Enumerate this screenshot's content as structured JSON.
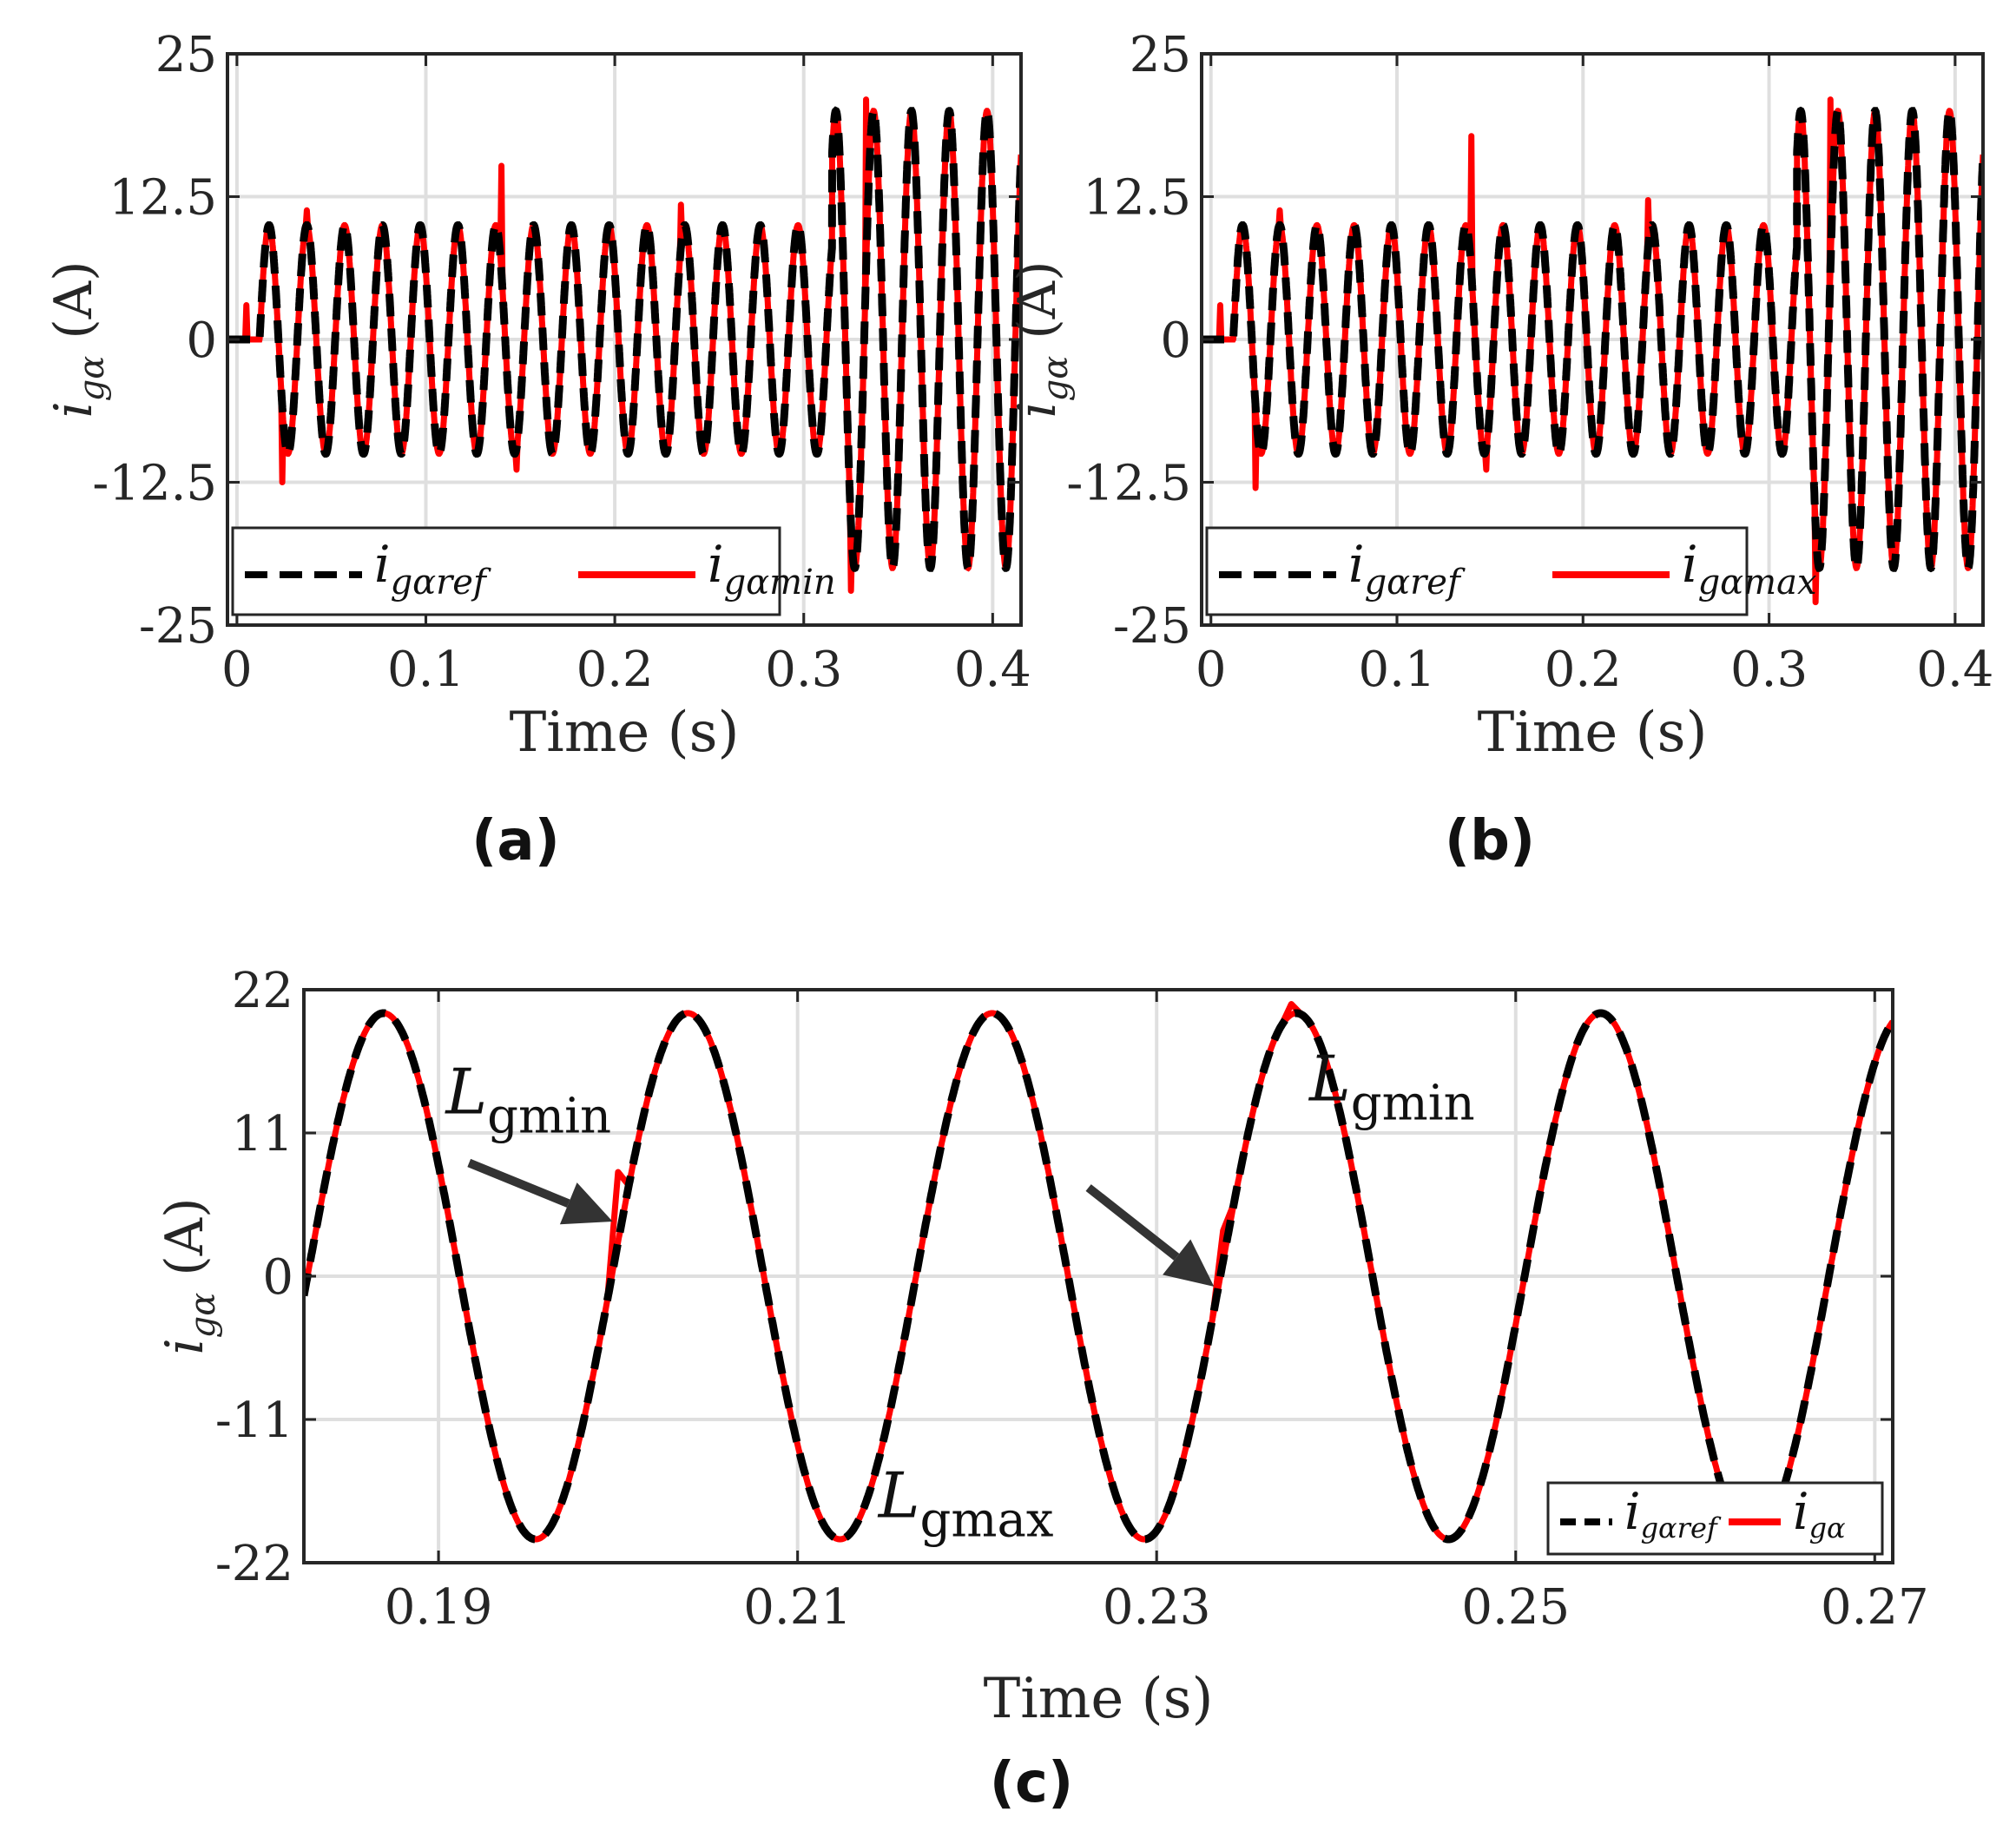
{
  "chart_data": [
    {
      "id": "a",
      "type": "line",
      "caption": "(a)",
      "xlabel": "Time (s)",
      "ylabel": "i_{gα} (A)",
      "ylabel_main": "i",
      "ylabel_sub": "gα",
      "ylabel_unit": " (A)",
      "xlim": [
        -0.005,
        0.415
      ],
      "ylim": [
        -25,
        25
      ],
      "xticks": [
        0,
        0.1,
        0.2,
        0.3,
        0.4
      ],
      "xtick_labels": [
        "0",
        "0.1",
        "0.2",
        "0.3",
        "0.4"
      ],
      "yticks": [
        -25,
        -12.5,
        0,
        12.5,
        25
      ],
      "ytick_labels": [
        "-25",
        "-12.5",
        "0",
        "12.5",
        "25"
      ],
      "grid": true,
      "legend_position": "bottom-left",
      "frequency_hz": 50,
      "series": [
        {
          "name": "i_{gαref}",
          "label_main": "i",
          "label_sub": "gαref",
          "color": "#000000",
          "style": "dashed",
          "segments": [
            {
              "t_start": 0.0,
              "t_end": 0.012,
              "amplitude": 0
            },
            {
              "t_start": 0.012,
              "t_end": 0.315,
              "amplitude": 10
            },
            {
              "t_start": 0.315,
              "t_end": 0.4,
              "amplitude": 20
            }
          ]
        },
        {
          "name": "i_{gαmin}",
          "label_main": "i",
          "label_sub": "gαmin",
          "color": "#ff0000",
          "style": "solid",
          "transients": [
            {
              "t": 0.005,
              "value": 3
            },
            {
              "t": 0.024,
              "value": -12.5
            },
            {
              "t": 0.037,
              "value": 11.3
            },
            {
              "t": 0.14,
              "value": 15.2
            },
            {
              "t": 0.148,
              "value": -11.4
            },
            {
              "t": 0.235,
              "value": 11.8
            },
            {
              "t": 0.325,
              "value": -22
            },
            {
              "t": 0.333,
              "value": 21
            }
          ]
        }
      ]
    },
    {
      "id": "b",
      "type": "line",
      "caption": "(b)",
      "xlabel": "Time (s)",
      "ylabel": "i_{gα} (A)",
      "ylabel_main": "i",
      "ylabel_sub": "gα",
      "ylabel_unit": " (A)",
      "xlim": [
        -0.005,
        0.415
      ],
      "ylim": [
        -25,
        25
      ],
      "xticks": [
        0,
        0.1,
        0.2,
        0.3,
        0.4
      ],
      "xtick_labels": [
        "0",
        "0.1",
        "0.2",
        "0.3",
        "0.4"
      ],
      "yticks": [
        -25,
        -12.5,
        0,
        12.5,
        25
      ],
      "ytick_labels": [
        "-25",
        "-12.5",
        "0",
        "12.5",
        "25"
      ],
      "grid": true,
      "legend_position": "bottom-left",
      "frequency_hz": 50,
      "series": [
        {
          "name": "i_{gαref}",
          "label_main": "i",
          "label_sub": "gαref",
          "color": "#000000",
          "style": "dashed",
          "segments": [
            {
              "t_start": 0.0,
              "t_end": 0.012,
              "amplitude": 0
            },
            {
              "t_start": 0.012,
              "t_end": 0.315,
              "amplitude": 10
            },
            {
              "t_start": 0.315,
              "t_end": 0.4,
              "amplitude": 20
            }
          ]
        },
        {
          "name": "i_{gαmax}",
          "label_main": "i",
          "label_sub": "gαmax",
          "color": "#ff0000",
          "style": "solid",
          "transients": [
            {
              "t": 0.005,
              "value": 3
            },
            {
              "t": 0.024,
              "value": -13
            },
            {
              "t": 0.037,
              "value": 11.3
            },
            {
              "t": 0.14,
              "value": 17.8
            },
            {
              "t": 0.148,
              "value": -11.4
            },
            {
              "t": 0.235,
              "value": 12.2
            },
            {
              "t": 0.325,
              "value": -23
            },
            {
              "t": 0.333,
              "value": 21
            }
          ]
        }
      ]
    },
    {
      "id": "c",
      "type": "line",
      "caption": "(c)",
      "xlabel": "Time (s)",
      "ylabel": "i_{gα} (A)",
      "ylabel_main": "i",
      "ylabel_sub": "gα",
      "ylabel_unit": " (A)",
      "xlim": [
        0.1825,
        0.271
      ],
      "ylim": [
        -22,
        22
      ],
      "xticks": [
        0.19,
        0.21,
        0.23,
        0.25,
        0.27
      ],
      "xtick_labels": [
        "0.19",
        "0.21",
        "0.23",
        "0.25",
        "0.27"
      ],
      "yticks": [
        -22,
        -11,
        0,
        11,
        22
      ],
      "ytick_labels": [
        "-22",
        "-11",
        "0",
        "11",
        "22"
      ],
      "grid": true,
      "legend_position": "bottom-right",
      "frequency_hz": 59,
      "amplitude": 20.2,
      "phase_zero_time": 0.1827,
      "series": [
        {
          "name": "i_{gαref}",
          "label_main": "i",
          "label_sub": "gαref",
          "color": "#000000",
          "style": "dashed"
        },
        {
          "name": "i_{gα}",
          "label_main": "i",
          "label_sub": "gα",
          "color": "#ff0000",
          "style": "solid",
          "transients": [
            {
              "t": 0.2,
              "value": 8
            },
            {
              "t": 0.2337,
              "value": 3.5
            },
            {
              "t": 0.2375,
              "value": 20.9
            }
          ]
        }
      ],
      "annotations": [
        {
          "name": "annotation-lgmin-1",
          "text_main": "L",
          "text_sub": "gmin",
          "text_x": 0.1904,
          "text_y": 12.5,
          "arrow_from": [
            0.1917,
            8.7
          ],
          "arrow_to": [
            0.1997,
            4.2
          ]
        },
        {
          "name": "annotation-lgmin-2",
          "text_main": "L",
          "text_sub": "gmin",
          "text_x": 0.2385,
          "text_y": 13.5,
          "arrow_from": [
            0.2262,
            6.8
          ],
          "arrow_to": [
            0.2332,
            -0.8
          ]
        },
        {
          "name": "annotation-lgmax",
          "text_main": "L",
          "text_sub": "gmax",
          "text_x": 0.2145,
          "text_y": -18.5
        }
      ]
    }
  ]
}
